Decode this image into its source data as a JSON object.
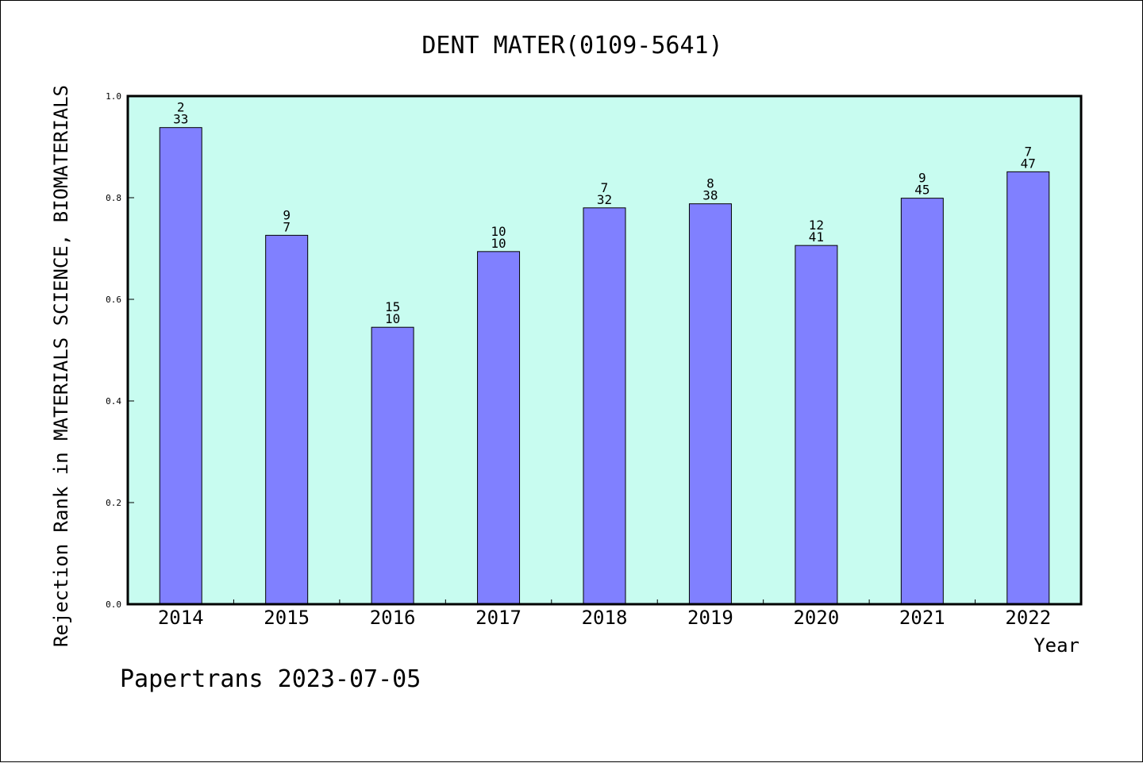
{
  "chart_data": {
    "type": "bar",
    "title": "DENT MATER(0109-5641)",
    "xlabel": "Year",
    "ylabel": "Rejection Rank in MATERIALS SCIENCE, BIOMATERIALS",
    "ylim": [
      0,
      1.0
    ],
    "yticks": [
      "0.0",
      "0.2",
      "0.4",
      "0.6",
      "0.8",
      "1.0"
    ],
    "categories": [
      "2014",
      "2015",
      "2016",
      "2017",
      "2018",
      "2019",
      "2020",
      "2021",
      "2022"
    ],
    "values": [
      0.938,
      0.726,
      0.545,
      0.694,
      0.78,
      0.788,
      0.706,
      0.799,
      0.851
    ],
    "labels_top": [
      "2",
      "9",
      "15",
      "10",
      "7",
      "8",
      "12",
      "9",
      "7"
    ],
    "labels_bottom": [
      "33",
      "7",
      "10",
      "10",
      "32",
      "38",
      "41",
      "45",
      "47"
    ],
    "grid": false,
    "colors": {
      "plot_background": "#c8fcf0",
      "bar_fill": "#8080ff",
      "bar_stroke": "#000000"
    }
  },
  "footer": "Papertrans 2023-07-05"
}
